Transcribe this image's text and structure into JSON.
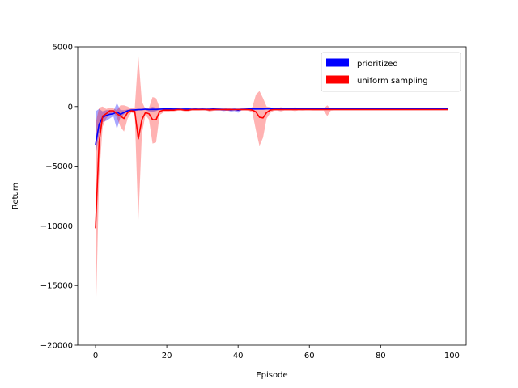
{
  "chart_data": {
    "type": "line",
    "title": "",
    "xlabel": "Episode",
    "ylabel": "Return",
    "xlim": [
      -5,
      104
    ],
    "ylim": [
      -20000,
      5000
    ],
    "xticks": [
      0,
      20,
      40,
      60,
      80,
      100
    ],
    "yticks": [
      -20000,
      -15000,
      -10000,
      -5000,
      0,
      5000
    ],
    "xtick_labels": [
      "0",
      "20",
      "40",
      "60",
      "80",
      "100"
    ],
    "ytick_labels": [
      "−20000",
      "−15000",
      "−10000",
      "−5000",
      "0",
      "5000"
    ],
    "grid": false,
    "legend_position": "top-right",
    "x": [
      0,
      1,
      2,
      3,
      4,
      5,
      6,
      7,
      8,
      9,
      10,
      11,
      12,
      13,
      14,
      15,
      16,
      17,
      18,
      19,
      20,
      21,
      22,
      23,
      24,
      25,
      26,
      27,
      28,
      29,
      30,
      31,
      32,
      33,
      34,
      35,
      36,
      37,
      38,
      39,
      40,
      41,
      42,
      43,
      44,
      45,
      46,
      47,
      48,
      49,
      50,
      51,
      52,
      53,
      54,
      55,
      56,
      57,
      58,
      59,
      60,
      61,
      62,
      63,
      64,
      65,
      66,
      67,
      68,
      69,
      70,
      71,
      72,
      73,
      74,
      75,
      76,
      77,
      78,
      79,
      80,
      81,
      82,
      83,
      84,
      85,
      86,
      87,
      88,
      89,
      90,
      91,
      92,
      93,
      94,
      95,
      96,
      97,
      98,
      99
    ],
    "series": [
      {
        "name": "prioritized",
        "color": "#0000ff",
        "mean": [
          -3200,
          -1500,
          -900,
          -750,
          -650,
          -600,
          -450,
          -650,
          -500,
          -350,
          -300,
          -280,
          -250,
          -250,
          -220,
          -250,
          -230,
          -240,
          -220,
          -200,
          -200,
          -200,
          -210,
          -210,
          -220,
          -210,
          -210,
          -220,
          -210,
          -220,
          -210,
          -230,
          -240,
          -200,
          -220,
          -230,
          -250,
          -250,
          -280,
          -240,
          -300,
          -230,
          -220,
          -200,
          -200,
          -200,
          -200,
          -200,
          -190,
          -190,
          -190,
          -200,
          -200,
          -190,
          -190,
          -190,
          -200,
          -190,
          -190,
          -190,
          -190,
          -190,
          -190,
          -190,
          -190,
          -190,
          -190,
          -190,
          -190,
          -190,
          -190,
          -190,
          -190,
          -190,
          -190,
          -190,
          -190,
          -190,
          -190,
          -190,
          -190,
          -190,
          -190,
          -190,
          -190,
          -190,
          -190,
          -190,
          -190,
          -190,
          -190,
          -190,
          -190,
          -190,
          -190,
          -190,
          -190,
          -190,
          -190,
          -190
        ],
        "lower": [
          -4200,
          -2300,
          -1300,
          -1200,
          -1000,
          -800,
          -1900,
          -900,
          -650,
          -450,
          -400,
          -380,
          -330,
          -320,
          -290,
          -400,
          -430,
          -380,
          -280,
          -260,
          -250,
          -260,
          -260,
          -270,
          -280,
          -260,
          -250,
          -260,
          -250,
          -260,
          -250,
          -320,
          -330,
          -290,
          -330,
          -340,
          -380,
          -340,
          -420,
          -380,
          -520,
          -300,
          -280,
          -260,
          -250,
          -250,
          -250,
          -250,
          -240,
          -240,
          -240,
          -300,
          -320,
          -260,
          -240,
          -240,
          -280,
          -240,
          -240,
          -240,
          -240,
          -240,
          -240,
          -240,
          -240,
          -240,
          -240,
          -240,
          -240,
          -240,
          -240,
          -240,
          -240,
          -240,
          -240,
          -240,
          -240,
          -240,
          -240,
          -240,
          -240,
          -240,
          -240,
          -240,
          -240,
          -240,
          -240,
          -240,
          -240,
          -240,
          -240,
          -240,
          -240,
          -240,
          -240,
          -240,
          -240,
          -240,
          -240,
          -240
        ],
        "upper": [
          -400,
          -200,
          -400,
          -300,
          -300,
          -400,
          300,
          -300,
          -300,
          -250,
          -200,
          -200,
          -180,
          -170,
          -150,
          -100,
          -30,
          -100,
          -160,
          -150,
          -150,
          -140,
          -160,
          -150,
          -160,
          -160,
          -170,
          -180,
          -170,
          -180,
          -170,
          -140,
          -150,
          -110,
          -110,
          -120,
          -120,
          -160,
          -140,
          -100,
          -80,
          -160,
          -160,
          -140,
          -150,
          -150,
          -150,
          -150,
          -140,
          -140,
          -140,
          -100,
          -80,
          -120,
          -140,
          -140,
          -120,
          -140,
          -140,
          -140,
          -140,
          -140,
          -140,
          -140,
          -140,
          -140,
          -140,
          -140,
          -140,
          -140,
          -140,
          -140,
          -140,
          -140,
          -140,
          -140,
          -140,
          -140,
          -140,
          -140,
          -140,
          -140,
          -140,
          -140,
          -140,
          -140,
          -140,
          -140,
          -140,
          -140,
          -140,
          -140,
          -140,
          -140,
          -140,
          -140,
          -140,
          -140,
          -140,
          -140
        ]
      },
      {
        "name": "uniform sampling",
        "color": "#ff0000",
        "mean": [
          -10200,
          -3000,
          -800,
          -600,
          -350,
          -350,
          -600,
          -800,
          -1000,
          -500,
          -350,
          -400,
          -2700,
          -1100,
          -500,
          -600,
          -1100,
          -1100,
          -400,
          -300,
          -300,
          -300,
          -300,
          -250,
          -250,
          -300,
          -300,
          -250,
          -250,
          -250,
          -250,
          -250,
          -280,
          -260,
          -250,
          -250,
          -250,
          -260,
          -250,
          -250,
          -250,
          -250,
          -250,
          -250,
          -300,
          -450,
          -900,
          -950,
          -500,
          -300,
          -250,
          -250,
          -250,
          -250,
          -250,
          -250,
          -250,
          -250,
          -250,
          -250,
          -250,
          -250,
          -250,
          -250,
          -250,
          -250,
          -250,
          -250,
          -250,
          -250,
          -250,
          -250,
          -250,
          -250,
          -250,
          -250,
          -250,
          -250,
          -250,
          -250,
          -250,
          -250,
          -250,
          -250,
          -250,
          -250,
          -250,
          -250,
          -250,
          -250,
          -250,
          -250,
          -250,
          -250,
          -250,
          -250,
          -250,
          -250,
          -250,
          -250
        ],
        "lower": [
          -18900,
          -6000,
          -1700,
          -1000,
          -600,
          -500,
          -900,
          -1700,
          -2100,
          -1000,
          -500,
          -600,
          -9700,
          -2300,
          -700,
          -1100,
          -3100,
          -3000,
          -700,
          -500,
          -450,
          -400,
          -400,
          -350,
          -330,
          -400,
          -400,
          -330,
          -330,
          -330,
          -320,
          -320,
          -420,
          -360,
          -320,
          -320,
          -330,
          -360,
          -330,
          -320,
          -320,
          -330,
          -330,
          -350,
          -500,
          -2000,
          -3300,
          -2600,
          -1000,
          -550,
          -350,
          -330,
          -400,
          -330,
          -330,
          -330,
          -380,
          -320,
          -330,
          -320,
          -320,
          -330,
          -330,
          -330,
          -330,
          -800,
          -330,
          -320,
          -320,
          -320,
          -320,
          -320,
          -320,
          -320,
          -320,
          -320,
          -320,
          -320,
          -320,
          -320,
          -320,
          -320,
          -320,
          -320,
          -320,
          -320,
          -320,
          -320,
          -320,
          -320,
          -320,
          -320,
          -320,
          -320,
          -320,
          -320,
          -320,
          -320,
          -320,
          -320
        ],
        "upper": [
          -1500,
          -100,
          0,
          -200,
          -100,
          -150,
          -300,
          100,
          100,
          0,
          -150,
          -150,
          4300,
          400,
          -200,
          -100,
          800,
          700,
          -100,
          -100,
          -150,
          -200,
          -150,
          -150,
          -170,
          -200,
          -200,
          -170,
          -170,
          -170,
          -180,
          -180,
          -100,
          -130,
          -180,
          -180,
          -170,
          -120,
          -170,
          -180,
          -180,
          -170,
          -170,
          -150,
          -50,
          1000,
          1300,
          700,
          0,
          -50,
          -150,
          -170,
          -50,
          -170,
          -170,
          -170,
          -50,
          -180,
          -170,
          -180,
          -180,
          -170,
          -170,
          -170,
          -170,
          100,
          -170,
          -180,
          -180,
          -180,
          -180,
          -180,
          -180,
          -180,
          -180,
          -180,
          -180,
          -180,
          -180,
          -180,
          -180,
          -180,
          -180,
          -180,
          -180,
          -180,
          -180,
          -180,
          -180,
          -180,
          -180,
          -180,
          -180,
          -180,
          -180,
          -180,
          -180,
          -180,
          -180,
          -180
        ]
      }
    ]
  },
  "legend": {
    "items": [
      {
        "label": "prioritized",
        "color": "#0000ff"
      },
      {
        "label": "uniform sampling",
        "color": "#ff0000"
      }
    ]
  }
}
